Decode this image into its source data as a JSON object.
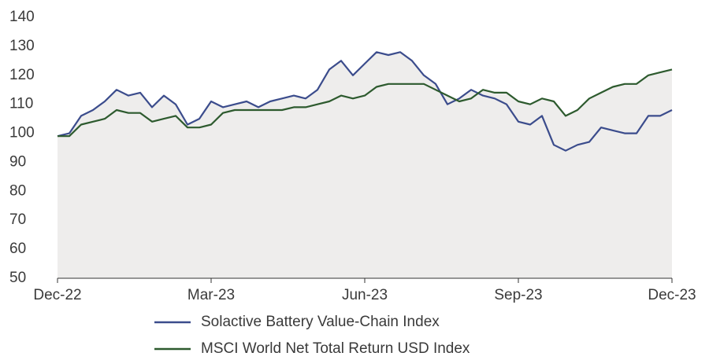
{
  "chart_data": {
    "type": "line",
    "categories": [
      "Dec-22",
      null,
      null,
      null,
      null,
      null,
      null,
      null,
      null,
      null,
      null,
      null,
      null,
      "Mar-23",
      null,
      null,
      null,
      null,
      null,
      null,
      null,
      null,
      null,
      null,
      null,
      null,
      "Jun-23",
      null,
      null,
      null,
      null,
      null,
      null,
      null,
      null,
      null,
      null,
      null,
      null,
      "Sep-23",
      null,
      null,
      null,
      null,
      null,
      null,
      null,
      null,
      null,
      null,
      null,
      null,
      "Dec-23"
    ],
    "series": [
      {
        "name": "Solactive Battery Value-Chain Index",
        "color": "#3b4c8c",
        "values": [
          99,
          100,
          106,
          108,
          111,
          115,
          113,
          114,
          109,
          113,
          110,
          103,
          105,
          111,
          109,
          110,
          111,
          109,
          111,
          112,
          113,
          112,
          115,
          122,
          125,
          120,
          124,
          128,
          127,
          128,
          125,
          120,
          117,
          110,
          112,
          115,
          113,
          112,
          110,
          104,
          103,
          106,
          96,
          94,
          96,
          97,
          102,
          101,
          100,
          100,
          106,
          106,
          108
        ]
      },
      {
        "name": "MSCI World Net Total Return USD Index",
        "color": "#2d5a2e",
        "values": [
          99,
          99,
          103,
          104,
          105,
          108,
          107,
          107,
          104,
          105,
          106,
          102,
          102,
          103,
          107,
          108,
          108,
          108,
          108,
          108,
          109,
          109,
          110,
          111,
          113,
          112,
          113,
          116,
          117,
          117,
          117,
          117,
          115,
          113,
          111,
          112,
          115,
          114,
          114,
          111,
          110,
          112,
          111,
          106,
          108,
          112,
          114,
          116,
          117,
          117,
          120,
          121,
          122
        ]
      }
    ],
    "fill": "#eeedec",
    "ylim": [
      50,
      140
    ],
    "yticks": [
      50,
      60,
      70,
      80,
      90,
      100,
      110,
      120,
      130,
      140
    ]
  }
}
